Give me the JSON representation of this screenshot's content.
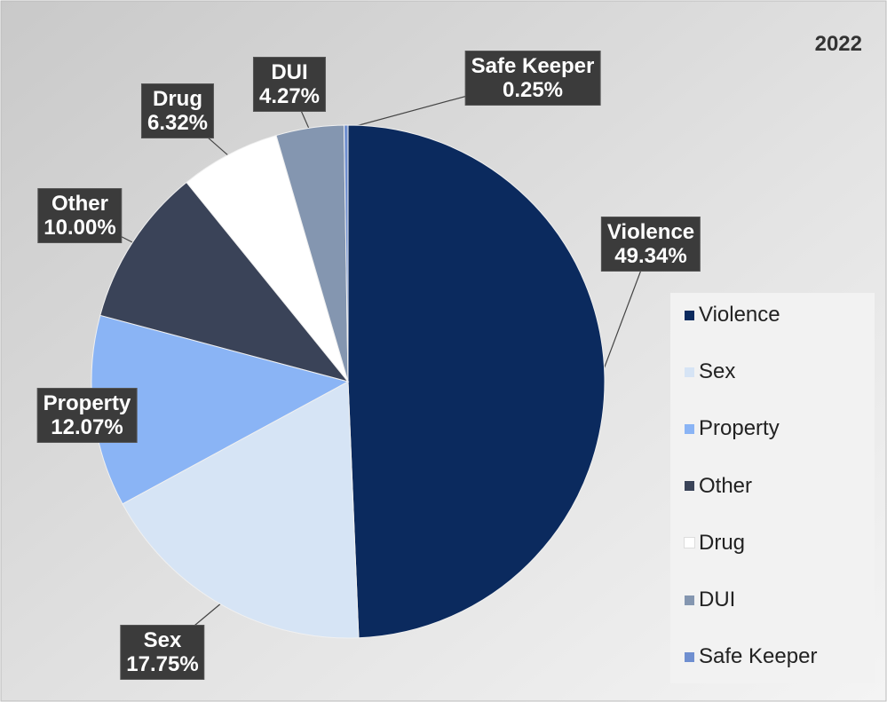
{
  "chart_data": {
    "type": "pie",
    "title": "2022",
    "categories": [
      "Violence",
      "Sex",
      "Property",
      "Other",
      "Drug",
      "DUI",
      "Safe Keeper"
    ],
    "values": [
      49.34,
      17.75,
      12.07,
      10.0,
      6.32,
      4.27,
      0.25
    ],
    "value_labels": [
      "49.34%",
      "17.75%",
      "12.07%",
      "10.00%",
      "6.32%",
      "4.27%",
      "0.25%"
    ],
    "colors": [
      "#0b2a5e",
      "#d6e4f5",
      "#8ab4f5",
      "#3a4358",
      "#ffffff",
      "#8496b0",
      "#6f8fd0"
    ],
    "legend": "right"
  }
}
